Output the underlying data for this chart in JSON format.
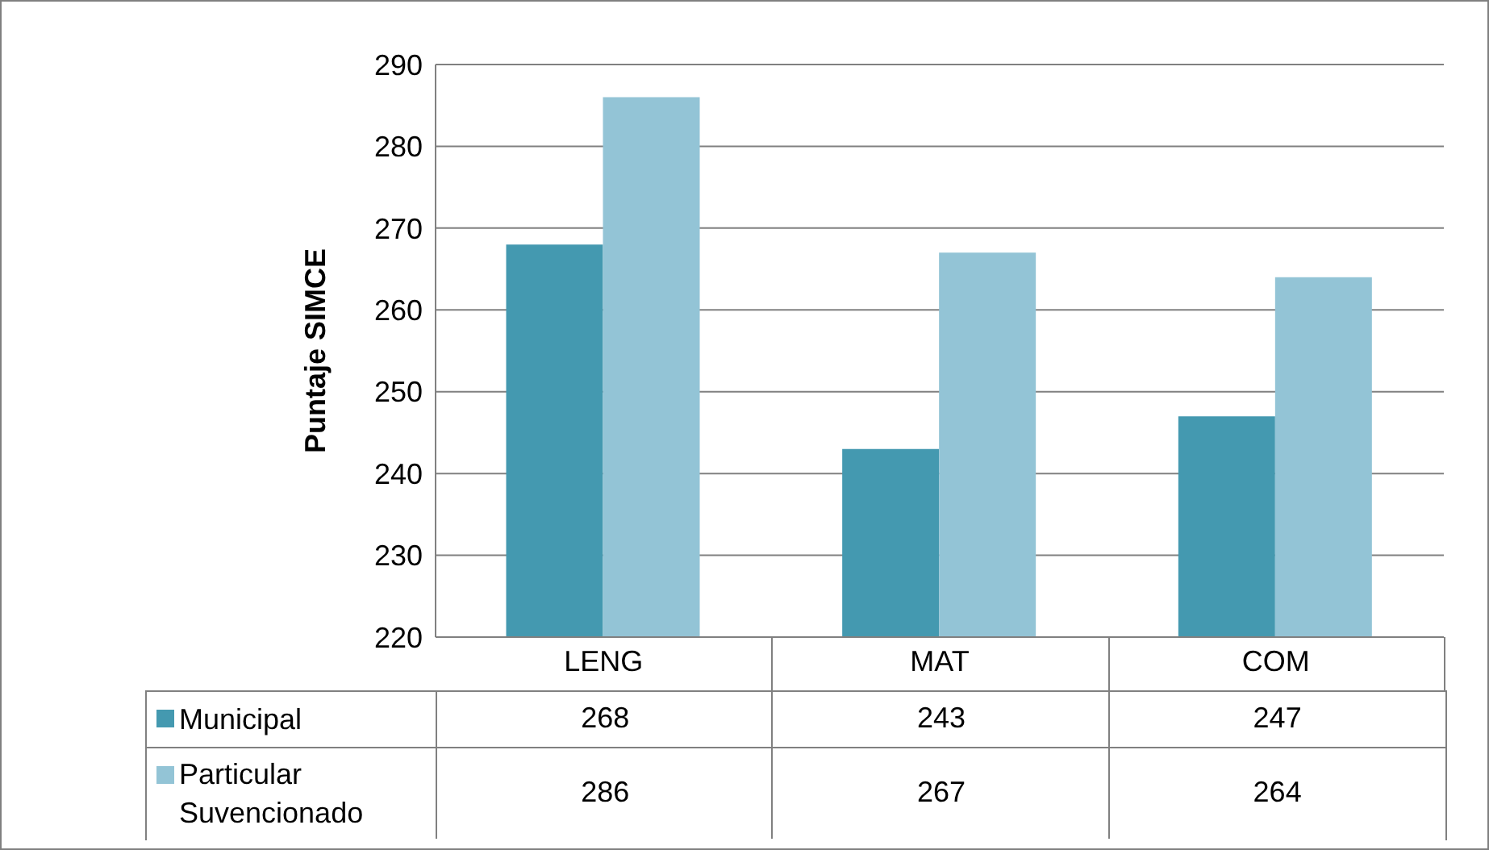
{
  "chart_data": {
    "type": "bar",
    "ylabel": "Puntaje SIMCE",
    "categories": [
      "LENG",
      "MAT",
      "COM"
    ],
    "series": [
      {
        "name": "Municipal",
        "color": "#4499b0",
        "values": [
          268,
          243,
          247
        ]
      },
      {
        "name": "Particular Suvencionado",
        "color": "#93c4d6",
        "values": [
          286,
          267,
          264
        ]
      }
    ],
    "ylim": [
      220,
      290
    ],
    "yticks": [
      220,
      230,
      240,
      250,
      260,
      270,
      280,
      290
    ],
    "grid": "y",
    "legend": "bottom left",
    "data_labels": true
  }
}
